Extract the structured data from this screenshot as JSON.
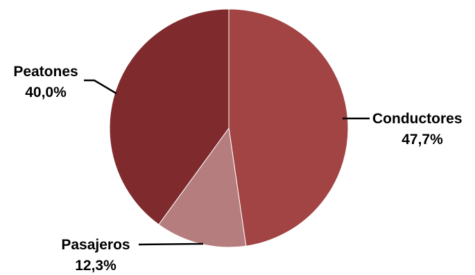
{
  "chart_data": {
    "type": "pie",
    "title": "",
    "legend": "none",
    "slices": [
      {
        "name": "Conductores",
        "value": 47.7,
        "value_label": "47,7%",
        "color": "#a14443"
      },
      {
        "name": "Pasajeros",
        "value": 12.3,
        "value_label": "12,3%",
        "color": "#b57d7d"
      },
      {
        "name": "Peatones",
        "value": 40.0,
        "value_label": "40,0%",
        "color": "#7f2b2e"
      }
    ]
  }
}
